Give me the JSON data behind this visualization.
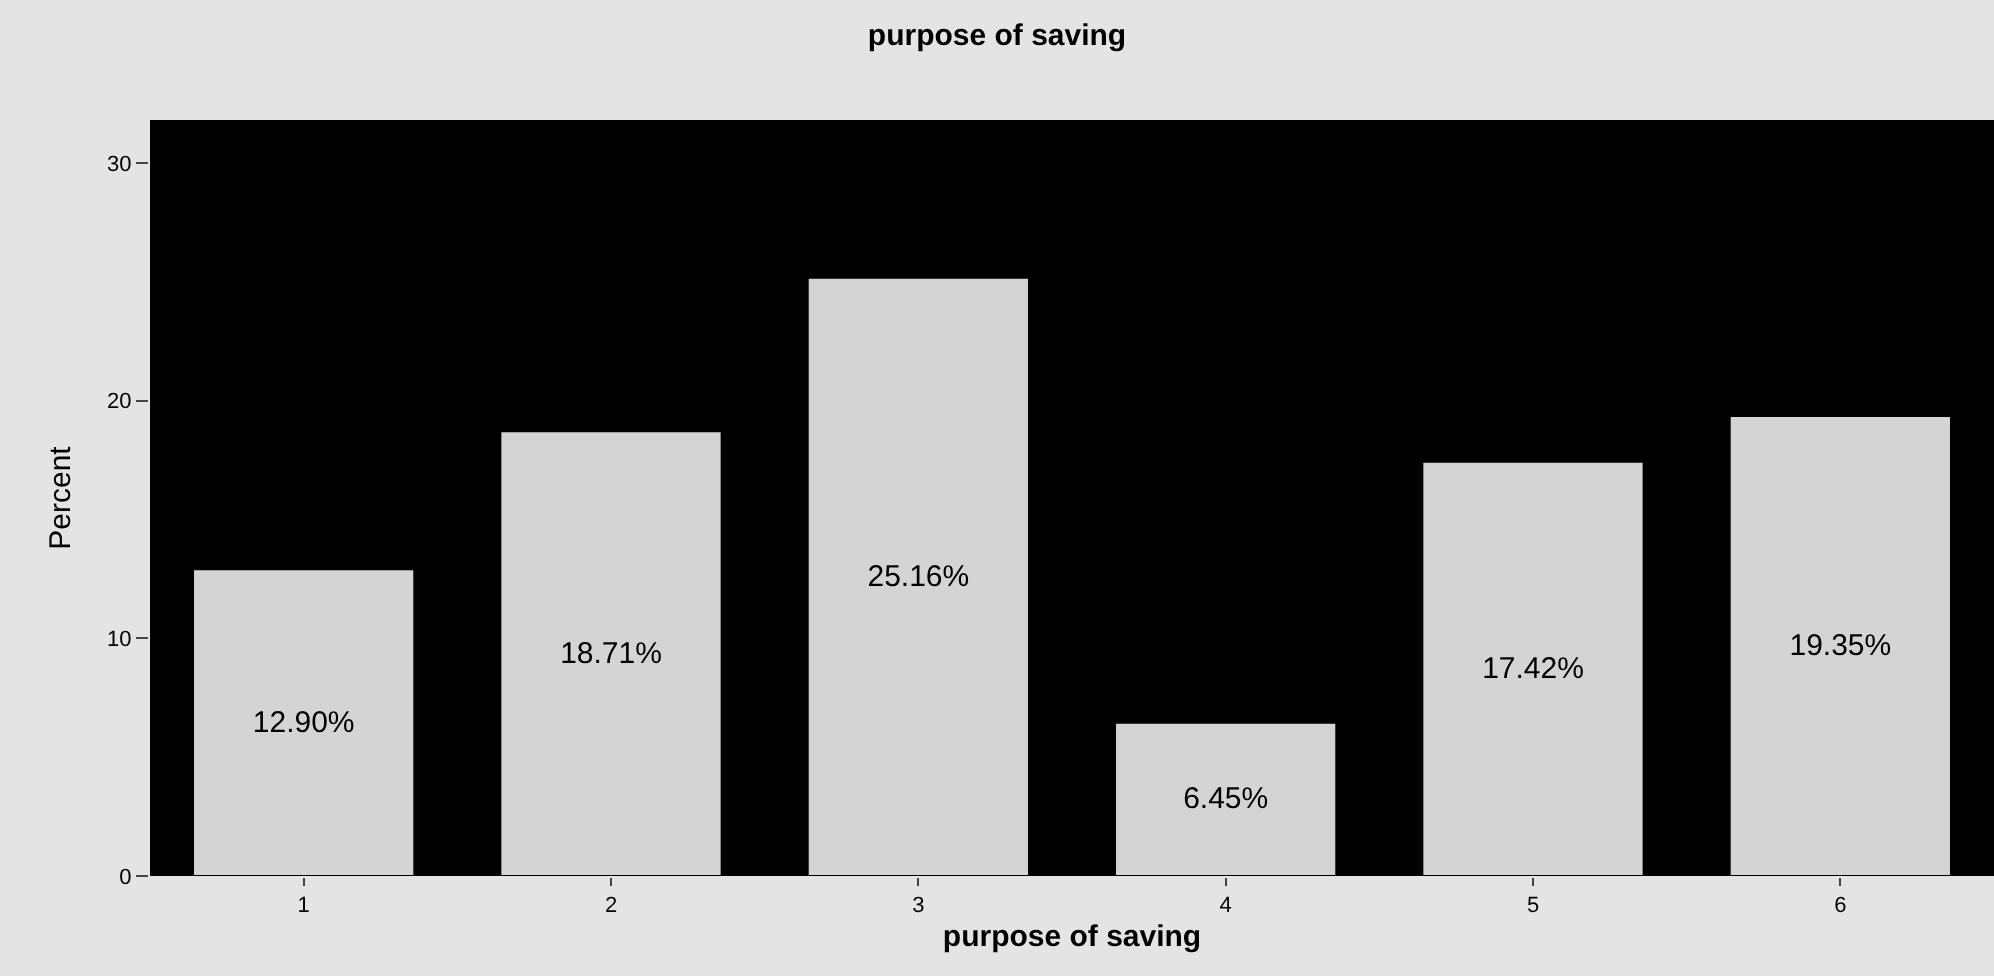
{
  "chart_data": {
    "type": "bar",
    "title": "purpose of saving",
    "xlabel": "purpose of saving",
    "ylabel": "Percent",
    "categories": [
      "1",
      "2",
      "3",
      "4",
      "5",
      "6"
    ],
    "values": [
      12.9,
      18.71,
      25.16,
      6.45,
      17.42,
      19.35
    ],
    "value_labels": [
      "12.90%",
      "18.71%",
      "25.16%",
      "6.45%",
      "17.42%",
      "19.35%"
    ],
    "color": "#d4d4d4",
    "ylim": [
      0,
      31.8
    ],
    "yticks": [
      0,
      10,
      20,
      30
    ],
    "grid": false,
    "legend": false
  }
}
